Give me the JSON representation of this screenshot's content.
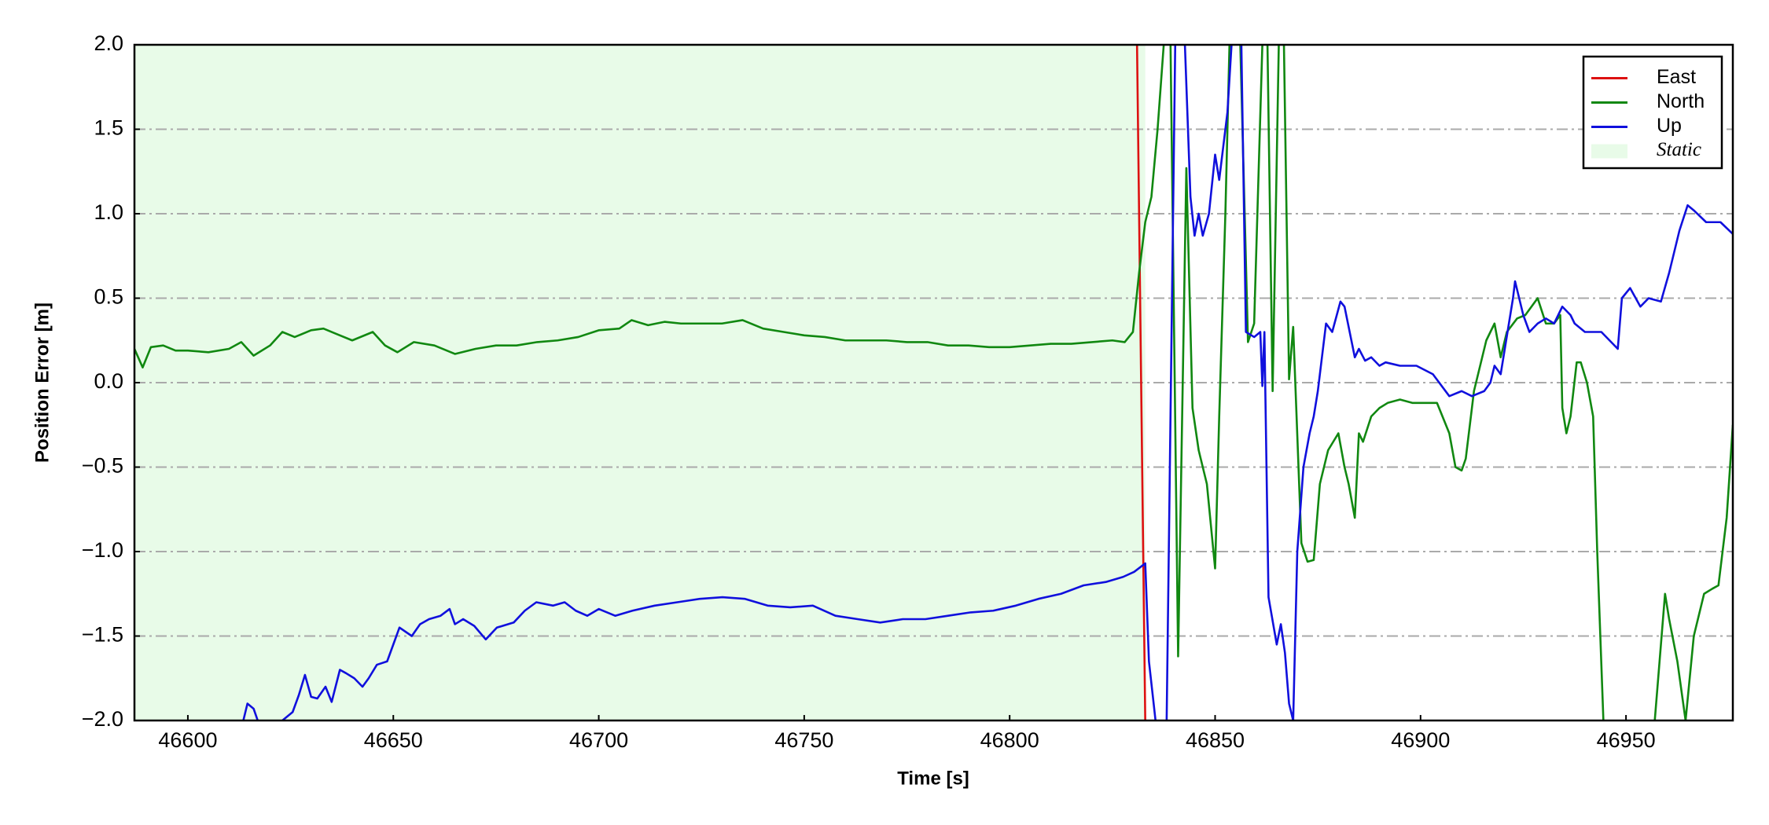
{
  "chart_data": {
    "type": "line",
    "xlabel": "Time [s]",
    "ylabel": "Position Error [m]",
    "xlim": [
      46587,
      46976
    ],
    "ylim": [
      -2,
      2
    ],
    "xticks": [
      46600,
      46650,
      46700,
      46750,
      46800,
      46850,
      46900,
      46950
    ],
    "yticks": [
      {
        "value": -2,
        "label": "−2.0"
      },
      {
        "value": -1.5,
        "label": "−1.5"
      },
      {
        "value": -1,
        "label": "−1.0"
      },
      {
        "value": -0.5,
        "label": "−0.5"
      },
      {
        "value": 0,
        "label": "0.0"
      },
      0.5,
      {
        "value": 1,
        "label": "1.0"
      },
      1.5,
      {
        "value": 2,
        "label": "2.0"
      }
    ],
    "grid": true,
    "legend": "upper right",
    "static_region": {
      "label": "Static",
      "x": [
        46587,
        46833
      ],
      "color": "#e8fbe8"
    },
    "series": [
      {
        "name": "East",
        "color": "#dd1111",
        "x": [
          46831,
          46833
        ],
        "values": [
          2.0,
          -2.0
        ]
      },
      {
        "name": "North",
        "color": "#118811",
        "x": [
          46587,
          46589,
          46591,
          46594,
          46597,
          46600,
          46605,
          46610,
          46613,
          46616,
          46620,
          46623,
          46626,
          46630,
          46633,
          46636,
          46640,
          46645,
          46648,
          46651,
          46655,
          46660,
          46665,
          46670,
          46675,
          46680,
          46685,
          46690,
          46695,
          46700,
          46705,
          46708,
          46712,
          46716,
          46720,
          46725,
          46730,
          46735,
          46740,
          46745,
          46750,
          46755,
          46760,
          46765,
          46770,
          46775,
          46780,
          46785,
          46790,
          46795,
          46800,
          46805,
          46810,
          46815,
          46820,
          46825,
          46828,
          46830,
          46831.5,
          46833,
          46834.5,
          46836,
          46837.5,
          46839,
          46841,
          46843,
          46844.5,
          46846,
          46848,
          46850,
          46851,
          46852.5,
          46853.5,
          46855.5,
          46858,
          46859.5,
          46861.5,
          46862.5,
          46864,
          46865.5,
          46866.5,
          46868,
          46869,
          46871,
          46872.5,
          46874,
          46875.5,
          46877.5,
          46880,
          46881.5,
          46882.5,
          46884,
          46885,
          46886,
          46888,
          46890,
          46892,
          46895,
          46898,
          46900.5,
          46904,
          46907,
          46908.5,
          46910,
          46911,
          46913,
          46916,
          46918,
          46919.5,
          46921,
          46923.5,
          46925.5,
          46928.5,
          46930.5,
          46932.5,
          46934,
          46934.5,
          46935.5,
          46936.5,
          46938,
          46939,
          46940.5,
          46942,
          46943,
          46944.5,
          46946,
          46950,
          46957,
          46959.5,
          46960.5,
          46962.5,
          46964.5,
          46966.5,
          46969,
          46971,
          46972.5,
          46974.5,
          46976
        ],
        "values": [
          0.2,
          0.09,
          0.21,
          0.22,
          0.19,
          0.19,
          0.18,
          0.2,
          0.24,
          0.16,
          0.22,
          0.3,
          0.27,
          0.31,
          0.32,
          0.29,
          0.25,
          0.3,
          0.22,
          0.18,
          0.24,
          0.22,
          0.17,
          0.2,
          0.22,
          0.22,
          0.24,
          0.25,
          0.27,
          0.31,
          0.32,
          0.37,
          0.34,
          0.36,
          0.35,
          0.35,
          0.35,
          0.37,
          0.32,
          0.3,
          0.28,
          0.27,
          0.25,
          0.25,
          0.25,
          0.24,
          0.24,
          0.22,
          0.22,
          0.21,
          0.21,
          0.22,
          0.23,
          0.23,
          0.24,
          0.25,
          0.24,
          0.3,
          0.65,
          0.95,
          1.1,
          1.5,
          2.0,
          2.3,
          -1.62,
          1.27,
          -0.15,
          -0.4,
          -0.6,
          -1.1,
          -0.2,
          1.0,
          2.0,
          2.6,
          0.24,
          0.35,
          2.0,
          2.4,
          -0.05,
          2.0,
          2.4,
          0.02,
          0.33,
          -0.95,
          -1.06,
          -1.05,
          -0.6,
          -0.4,
          -0.3,
          -0.5,
          -0.6,
          -0.8,
          -0.3,
          -0.35,
          -0.2,
          -0.15,
          -0.12,
          -0.1,
          -0.12,
          -0.12,
          -0.12,
          -0.3,
          -0.5,
          -0.52,
          -0.45,
          -0.05,
          0.25,
          0.35,
          0.15,
          0.3,
          0.38,
          0.4,
          0.5,
          0.35,
          0.35,
          0.4,
          -0.15,
          -0.3,
          -0.2,
          0.12,
          0.12,
          0.0,
          -0.2,
          -1.0,
          -2.0,
          -2.5,
          -2.6,
          -2.0,
          -1.25,
          -1.4,
          -1.65,
          -2.0,
          -1.5,
          -1.25,
          -1.22,
          -1.2,
          -0.8,
          -0.25
        ]
      },
      {
        "name": "Up",
        "color": "#1010dd",
        "x": [
          46610,
          46613.5,
          46614.5,
          46616,
          46617,
          46620,
          46623,
          46625.5,
          46627,
          46628.5,
          46630,
          46631.5,
          46633.5,
          46635,
          46637,
          46638.5,
          46640.5,
          46642.5,
          46644,
          46646,
          46648.5,
          46650,
          46651.5,
          46654.5,
          46656.5,
          46658.7,
          46661.5,
          46663.7,
          46665,
          46667,
          46669.7,
          46672.5,
          46675.2,
          46679.3,
          46682,
          46684.8,
          46688.9,
          46691.7,
          46694.4,
          46697.2,
          46700,
          46704,
          46708.2,
          46713.6,
          46719.1,
          46724.6,
          46730.1,
          46735.6,
          46741.1,
          46746.6,
          46752.1,
          46757.6,
          46763,
          46768.5,
          46774,
          46779.5,
          46785,
          46790.5,
          46796,
          46801.5,
          46807,
          46812.5,
          46818,
          46823.4,
          46827.6,
          46830.3,
          46833,
          46833.9,
          46835.5,
          46838,
          46840.5,
          46842.5,
          46844,
          46845,
          46846,
          46847,
          46848.5,
          46850,
          46851,
          46853,
          46854,
          46856,
          46857.5,
          46859.5,
          46861,
          46861.5,
          46862,
          46863,
          46865,
          46866,
          46867,
          46868,
          46869,
          46870,
          46871.5,
          46873,
          46874,
          46875,
          46877,
          46878.5,
          46880.5,
          46881.5,
          46884,
          46885,
          46886.5,
          46888,
          46890,
          46891.5,
          46895,
          46899,
          46903,
          46907,
          46910,
          46912.5,
          46915.5,
          46917,
          46918,
          46919.5,
          46922.5,
          46923,
          46925,
          46926.5,
          46928.5,
          46930.5,
          46932.5,
          46934.5,
          46936.5,
          46937.5,
          46940,
          46944,
          46948,
          46949,
          46951,
          46953.5,
          46955.5,
          46958.5,
          46960.5,
          46963,
          46965,
          46966.5,
          46969.5,
          46973,
          46976
        ],
        "values": [
          -2.3,
          -2.0,
          -1.9,
          -1.93,
          -2.0,
          -2.3,
          -2.0,
          -1.95,
          -1.85,
          -1.73,
          -1.86,
          -1.87,
          -1.8,
          -1.89,
          -1.7,
          -1.72,
          -1.75,
          -1.8,
          -1.75,
          -1.67,
          -1.65,
          -1.55,
          -1.45,
          -1.5,
          -1.43,
          -1.4,
          -1.38,
          -1.34,
          -1.43,
          -1.4,
          -1.44,
          -1.52,
          -1.45,
          -1.42,
          -1.35,
          -1.3,
          -1.32,
          -1.3,
          -1.35,
          -1.38,
          -1.34,
          -1.38,
          -1.35,
          -1.32,
          -1.3,
          -1.28,
          -1.27,
          -1.28,
          -1.32,
          -1.33,
          -1.32,
          -1.38,
          -1.4,
          -1.42,
          -1.4,
          -1.4,
          -1.38,
          -1.36,
          -1.35,
          -1.32,
          -1.28,
          -1.25,
          -1.2,
          -1.18,
          -1.15,
          -1.12,
          -1.07,
          -1.65,
          -2.0,
          -2.4,
          2.4,
          2.1,
          1.1,
          0.87,
          1.0,
          0.87,
          1.0,
          1.35,
          1.2,
          1.6,
          2.0,
          2.6,
          0.3,
          0.27,
          0.3,
          -0.02,
          0.3,
          -1.27,
          -1.55,
          -1.43,
          -1.6,
          -1.9,
          -2.0,
          -1.0,
          -0.5,
          -0.3,
          -0.2,
          -0.05,
          0.35,
          0.3,
          0.48,
          0.45,
          0.15,
          0.2,
          0.13,
          0.15,
          0.1,
          0.12,
          0.1,
          0.1,
          0.05,
          -0.08,
          -0.05,
          -0.08,
          -0.05,
          0.0,
          0.1,
          0.05,
          0.5,
          0.6,
          0.4,
          0.3,
          0.35,
          0.38,
          0.35,
          0.45,
          0.4,
          0.35,
          0.3,
          0.3,
          0.2,
          0.5,
          0.56,
          0.45,
          0.5,
          0.48,
          0.65,
          0.9,
          1.05,
          1.02,
          0.95,
          0.95,
          0.88
        ]
      }
    ]
  }
}
